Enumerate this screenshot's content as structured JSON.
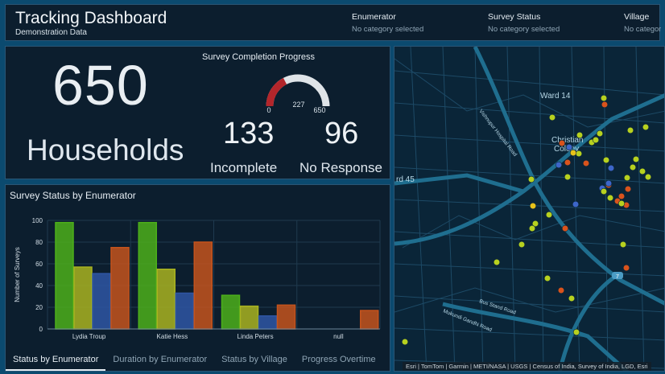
{
  "header": {
    "title": "Tracking Dashboard",
    "subtitle": "Demonstration Data",
    "selectors": [
      {
        "label": "Enumerator",
        "value": "No category selected"
      },
      {
        "label": "Survey Status",
        "value": "No category selected"
      },
      {
        "label": "Village",
        "value": "No category selected"
      }
    ]
  },
  "stats": {
    "households_value": "650",
    "households_label": "Households",
    "gauge": {
      "title": "Survey Completion Progress",
      "min": "0",
      "max": "650",
      "value": "227",
      "value_num": 227,
      "max_num": 650
    },
    "incomplete_value": "133",
    "incomplete_label": "Incomplete",
    "noresponse_value": "96",
    "noresponse_label": "No Response"
  },
  "chart": {
    "title": "Survey Status by Enumerator",
    "tabs": [
      "Status by Enumerator",
      "Duration by Enumerator",
      "Status by Village",
      "Progress Overtime"
    ],
    "active_tab": 0
  },
  "chart_data": {
    "type": "bar",
    "title": "Survey Status by Enumerator",
    "ylabel": "Number of Surveys",
    "xlabel": "",
    "ylim": [
      0,
      100
    ],
    "yticks": [
      "0",
      "20",
      "40",
      "60",
      "80",
      "100"
    ],
    "categories": [
      "Lydia Troup",
      "Katie Hess",
      "Linda Peters",
      "null"
    ],
    "series": [
      {
        "values": [
          98,
          98,
          31,
          0
        ],
        "color": "#4caf1a"
      },
      {
        "values": [
          57,
          55,
          21,
          0
        ],
        "color": "#a9b320"
      },
      {
        "values": [
          51,
          33,
          12,
          0
        ],
        "color": "#2f56a3"
      },
      {
        "values": [
          75,
          80,
          22,
          17
        ],
        "color": "#c4531c"
      }
    ]
  },
  "map": {
    "labels": {
      "ward14": "Ward 14",
      "christian": "Christian",
      "colony": "Colony",
      "ward45": "rd 45",
      "road1": "Vishnupur Hospital Road",
      "road2": "Bus Stand Road",
      "road3": "Mukundi Gandhi Road",
      "shield": "7"
    },
    "attribution": "Esri | TomTom | Garmin | METI/NASA | USGS | Census of India, Survey of India, LGD, Esri",
    "colors": {
      "complete": "#b7d11f",
      "partial": "#e8c21a",
      "in_progress": "#3d66c9",
      "no_response": "#d9531c"
    }
  }
}
